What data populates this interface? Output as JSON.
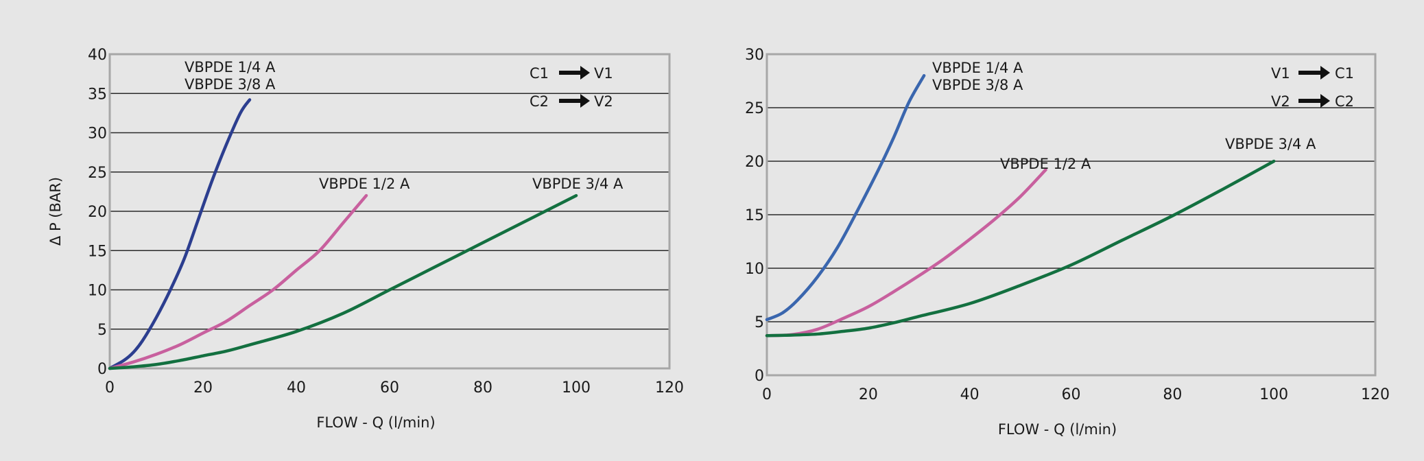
{
  "chart_data": [
    {
      "type": "line",
      "ylabel": "Δ P (BAR)",
      "xlabel": "FLOW - Q (l/min)",
      "xlim": [
        0,
        120
      ],
      "ylim": [
        0,
        40
      ],
      "x_ticks": [
        "0",
        "20",
        "40",
        "60",
        "80",
        "100",
        "120"
      ],
      "y_ticks": [
        "0",
        "5",
        "10",
        "15",
        "20",
        "25",
        "30",
        "35",
        "40"
      ],
      "grid": "horizontal",
      "flow_legend": [
        {
          "from": "C1",
          "to": "V1"
        },
        {
          "from": "C2",
          "to": "V2"
        }
      ],
      "series": [
        {
          "labels": [
            "VBPDE 1/4 A",
            "VBPDE 3/8 A"
          ],
          "color": "#2c3e8f",
          "points": [
            [
              0,
              0
            ],
            [
              3,
              1
            ],
            [
              5,
              2
            ],
            [
              7,
              3.5
            ],
            [
              10,
              6.5
            ],
            [
              13,
              10
            ],
            [
              16,
              14
            ],
            [
              19,
              19
            ],
            [
              22,
              24
            ],
            [
              25,
              28.5
            ],
            [
              28,
              32.5
            ],
            [
              30,
              34.2
            ]
          ]
        },
        {
          "labels": [
            "VBPDE 1/2 A"
          ],
          "color": "#c8609e",
          "points": [
            [
              0,
              0
            ],
            [
              5,
              0.8
            ],
            [
              10,
              1.8
            ],
            [
              15,
              3
            ],
            [
              20,
              4.5
            ],
            [
              25,
              6
            ],
            [
              30,
              8
            ],
            [
              35,
              10
            ],
            [
              40,
              12.5
            ],
            [
              45,
              15
            ],
            [
              50,
              18.5
            ],
            [
              55,
              22
            ]
          ]
        },
        {
          "labels": [
            "VBPDE 3/4 A"
          ],
          "color": "#137040",
          "points": [
            [
              0,
              0
            ],
            [
              5,
              0.2
            ],
            [
              10,
              0.5
            ],
            [
              15,
              1
            ],
            [
              20,
              1.6
            ],
            [
              25,
              2.2
            ],
            [
              30,
              3
            ],
            [
              40,
              4.7
            ],
            [
              50,
              7
            ],
            [
              60,
              10
            ],
            [
              70,
              13
            ],
            [
              80,
              16
            ],
            [
              90,
              19
            ],
            [
              100,
              22
            ]
          ]
        }
      ]
    },
    {
      "type": "line",
      "ylabel": "",
      "xlabel": "FLOW - Q (l/min)",
      "xlim": [
        0,
        120
      ],
      "ylim": [
        0,
        30
      ],
      "x_ticks": [
        "0",
        "20",
        "40",
        "60",
        "80",
        "100",
        "120"
      ],
      "y_ticks": [
        "0",
        "5",
        "10",
        "15",
        "20",
        "25",
        "30"
      ],
      "grid": "horizontal",
      "flow_legend": [
        {
          "from": "V1",
          "to": "C1"
        },
        {
          "from": "V2",
          "to": "C2"
        }
      ],
      "series": [
        {
          "labels": [
            "VBPDE 1/4 A",
            "VBPDE 3/8 A"
          ],
          "color": "#3a66ae",
          "points": [
            [
              0,
              5.2
            ],
            [
              3,
              5.8
            ],
            [
              6,
              7
            ],
            [
              10,
              9.2
            ],
            [
              14,
              12
            ],
            [
              18,
              15.5
            ],
            [
              22,
              19.2
            ],
            [
              25,
              22.2
            ],
            [
              28,
              25.5
            ],
            [
              31,
              28
            ]
          ]
        },
        {
          "labels": [
            "VBPDE 1/2 A"
          ],
          "color": "#c8609e",
          "points": [
            [
              0,
              3.7
            ],
            [
              5,
              3.8
            ],
            [
              10,
              4.3
            ],
            [
              15,
              5.3
            ],
            [
              20,
              6.4
            ],
            [
              25,
              7.8
            ],
            [
              30,
              9.3
            ],
            [
              35,
              10.9
            ],
            [
              40,
              12.7
            ],
            [
              45,
              14.6
            ],
            [
              50,
              16.7
            ],
            [
              55,
              19.2
            ]
          ]
        },
        {
          "labels": [
            "VBPDE 3/4 A"
          ],
          "color": "#137040",
          "points": [
            [
              0,
              3.7
            ],
            [
              5,
              3.75
            ],
            [
              10,
              3.85
            ],
            [
              15,
              4.1
            ],
            [
              20,
              4.4
            ],
            [
              25,
              4.9
            ],
            [
              30,
              5.5
            ],
            [
              40,
              6.7
            ],
            [
              50,
              8.4
            ],
            [
              60,
              10.3
            ],
            [
              70,
              12.6
            ],
            [
              80,
              14.9
            ],
            [
              90,
              17.4
            ],
            [
              100,
              20
            ]
          ]
        }
      ]
    }
  ]
}
